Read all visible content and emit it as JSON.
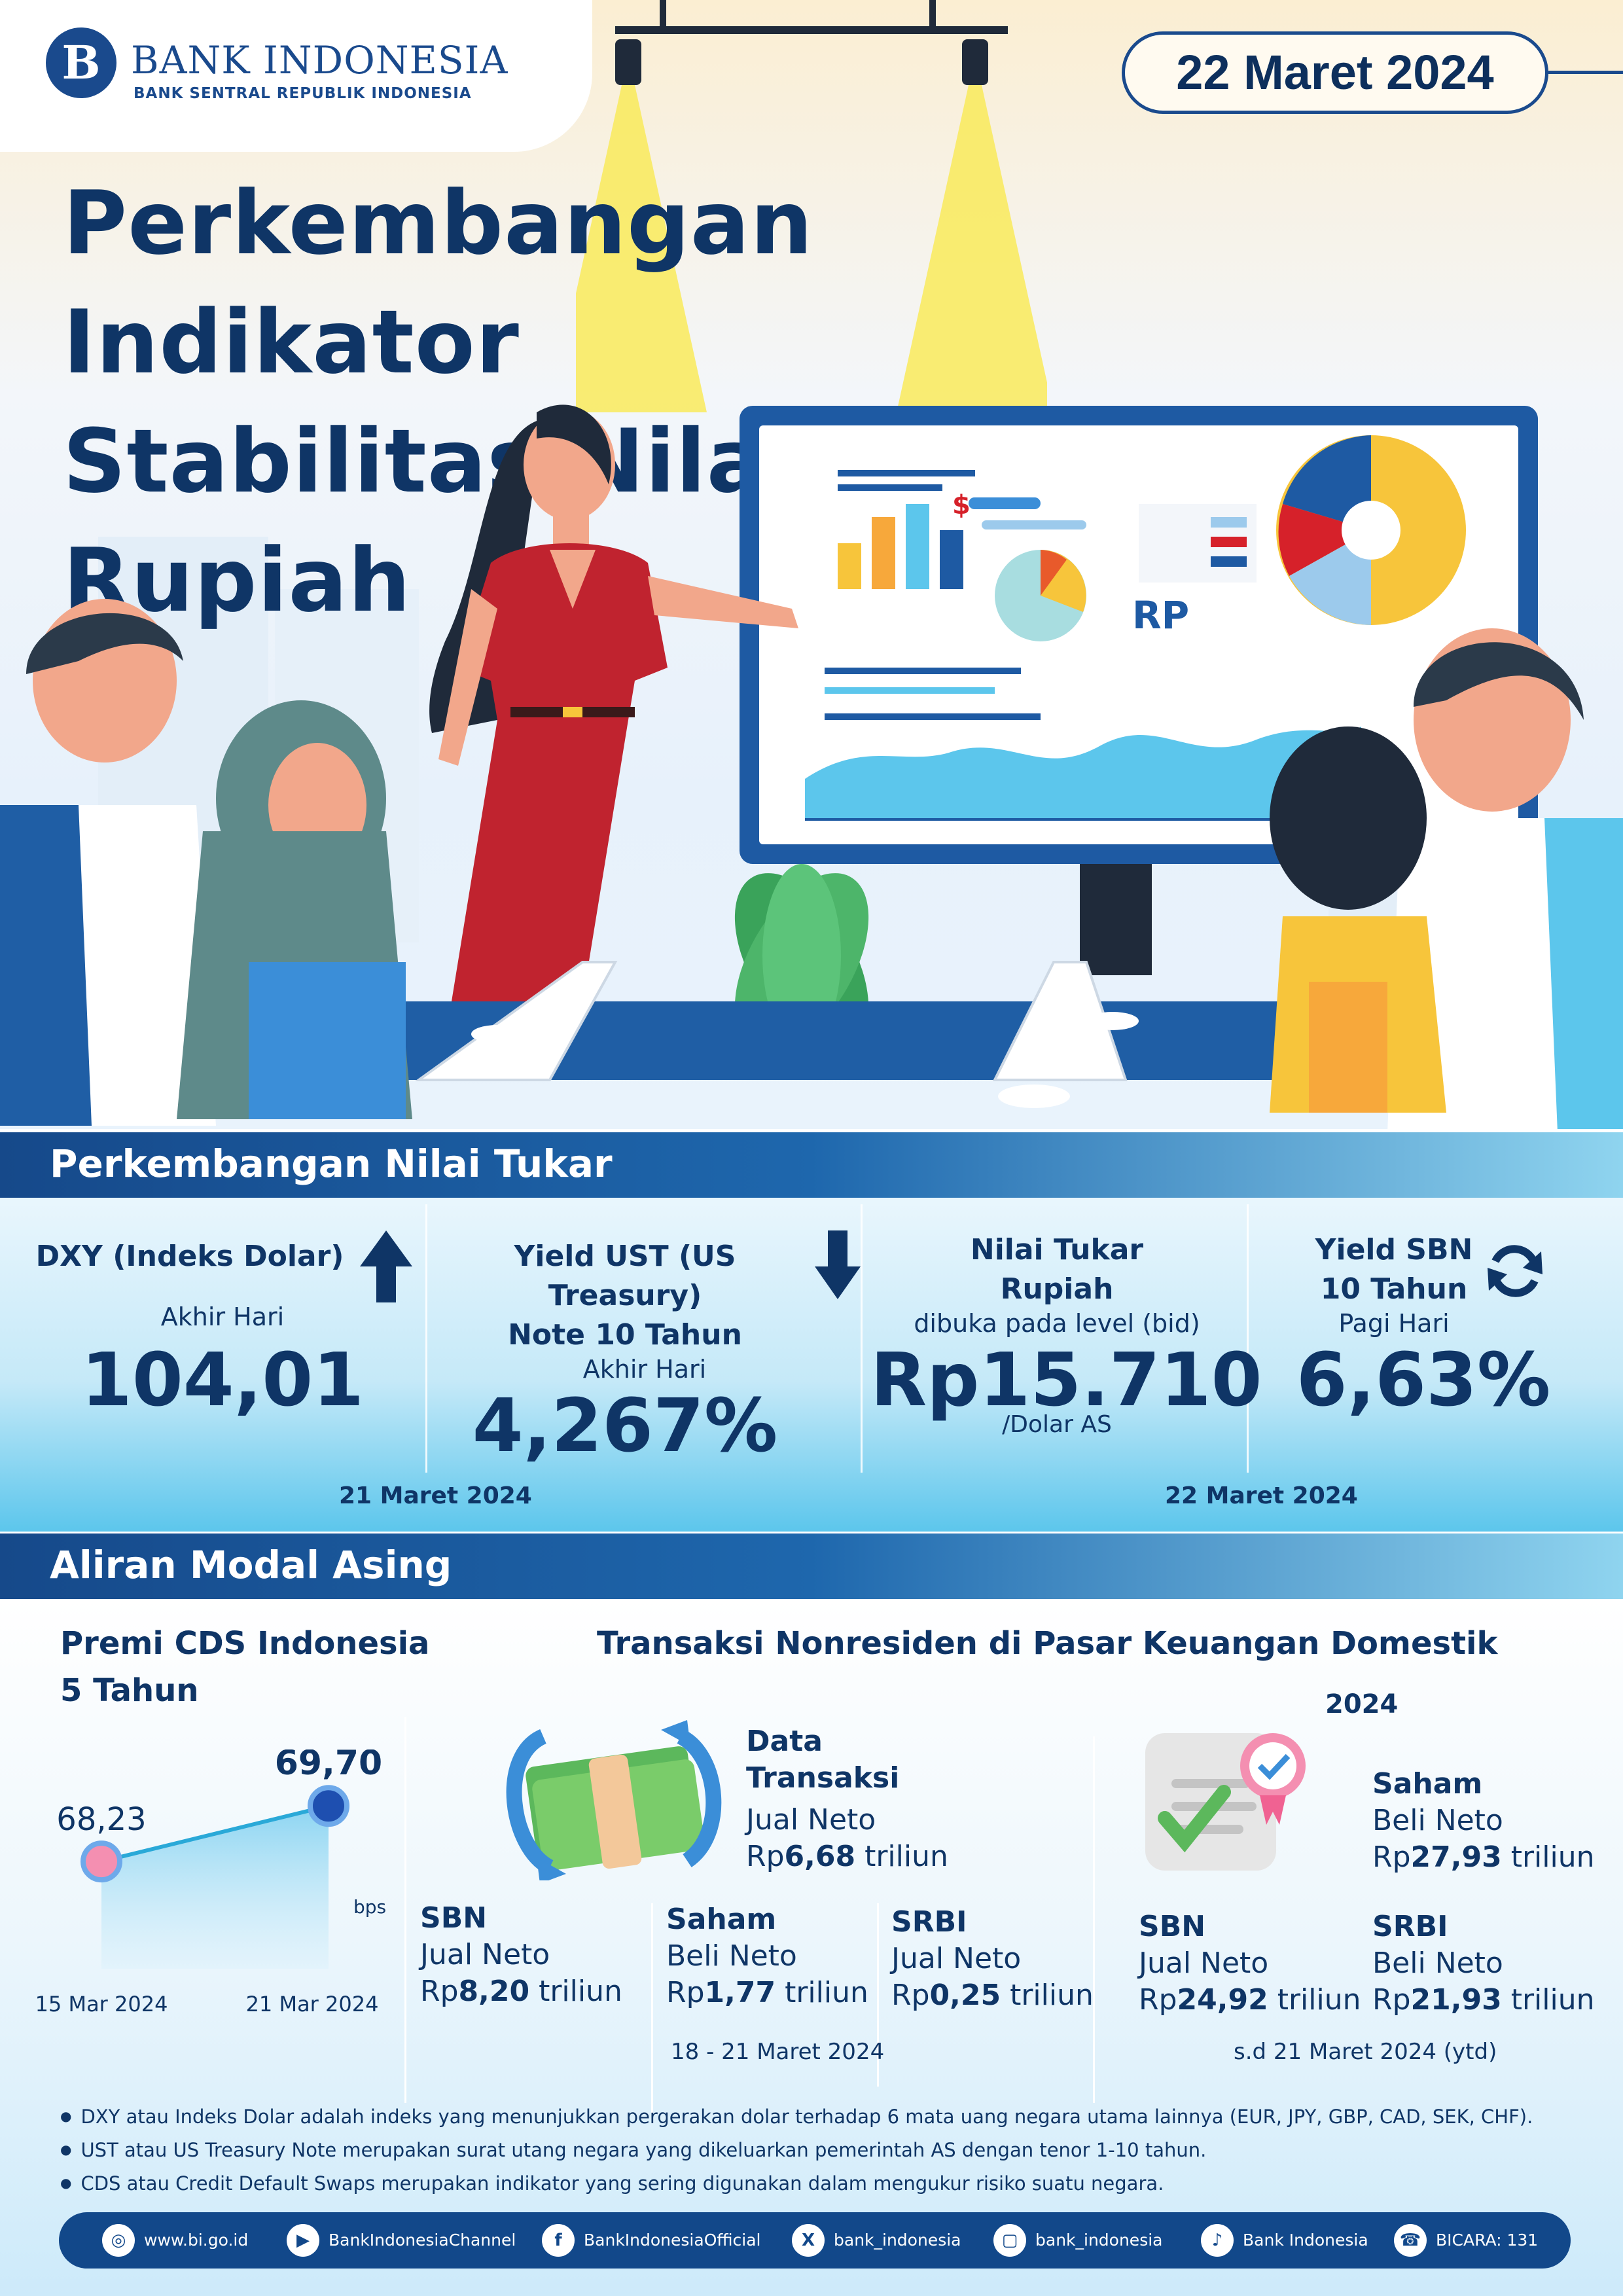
{
  "header": {
    "logo_letter": "B",
    "bank_name": "BANK INDONESIA",
    "bank_sub": "BANK SENTRAL REPUBLIK INDONESIA",
    "date": "22 Maret 2024",
    "title_line1": "Perkembangan Indikator",
    "title_line2": "Stabilitas Nilai Rupiah",
    "screen_rp": "RP",
    "screen_dollar": "$"
  },
  "nilai_tukar": {
    "section_title": "Perkembangan Nilai Tukar",
    "dxy": {
      "label": "DXY (Indeks Dolar)",
      "sub": "Akhir Hari",
      "value": "104,01",
      "trend_icon": "arrow-up"
    },
    "ust": {
      "label_line1": "Yield UST (US Treasury)",
      "label_line2": "Note  10 Tahun",
      "sub": "Akhir Hari",
      "value": "4,267%",
      "trend_icon": "arrow-down"
    },
    "rupiah": {
      "label_line1": "Nilai Tukar",
      "label_line2": "Rupiah",
      "sub": "dibuka pada level (bid)",
      "value": "Rp15.710",
      "unit": "/Dolar AS"
    },
    "sbn": {
      "label_line1": "Yield SBN",
      "label_line2": "10 Tahun",
      "sub": "Pagi Hari",
      "value": "6,63%",
      "trend_icon": "refresh"
    },
    "date_left": "21 Maret 2024",
    "date_right": "22 Maret 2024"
  },
  "modal_asing": {
    "section_title": "Aliran Modal Asing",
    "cds_title_line1": "Premi CDS Indonesia",
    "cds_title_line2": "5 Tahun",
    "cds_unit": "bps",
    "transaksi_title": "Transaksi Nonresiden di Pasar Keuangan Domestik",
    "data_transaksi": {
      "title_line1": "Data",
      "title_line2": "Transaksi",
      "status": "Jual Neto",
      "prefix": "Rp",
      "amount": "6,68",
      "suffix": " triliun"
    },
    "weekly": [
      {
        "name": "SBN",
        "status": "Jual Neto",
        "prefix": "Rp",
        "amount": "8,20",
        "suffix": " triliun"
      },
      {
        "name": "Saham",
        "status": "Beli Neto",
        "prefix": "Rp",
        "amount": "1,77",
        "suffix": " triliun"
      },
      {
        "name": "SRBI",
        "status": "Jual Neto",
        "prefix": "Rp",
        "amount": "0,25",
        "suffix": " triliun"
      }
    ],
    "weekly_period": "18 - 21 Maret 2024",
    "ytd_year": "2024",
    "ytd": [
      {
        "name": "Saham",
        "status": "Beli Neto",
        "prefix": "Rp",
        "amount": "27,93",
        "suffix": " triliun"
      },
      {
        "name": "SBN",
        "status": "Jual Neto",
        "prefix": "Rp",
        "amount": "24,92",
        "suffix": " triliun"
      },
      {
        "name": "SRBI",
        "status": "Beli Neto",
        "prefix": "Rp",
        "amount": "21,93",
        "suffix": " triliun"
      }
    ],
    "ytd_period": "s.d 21 Maret 2024 (ytd)"
  },
  "chart_data": {
    "type": "line",
    "title": "Premi CDS Indonesia 5 Tahun",
    "x": [
      "15 Mar 2024",
      "21 Mar 2024"
    ],
    "series": [
      {
        "values": [
          68.23,
          69.7
        ]
      }
    ],
    "labels": [
      "68,23",
      "69,70"
    ],
    "ylabel": "bps",
    "grid": false
  },
  "notes": [
    "DXY atau Indeks Dolar adalah indeks yang menunjukkan pergerakan dolar terhadap 6 mata uang negara utama lainnya (EUR, JPY, GBP, CAD, SEK, CHF).",
    "UST atau US Treasury Note merupakan surat utang negara yang dikeluarkan  pemerintah AS dengan tenor 1-10 tahun.",
    "CDS atau Credit Default Swaps merupakan indikator  yang sering digunakan dalam mengukur risiko suatu negara."
  ],
  "footer": [
    {
      "icon": "globe-icon",
      "glyph": "◎",
      "label": "www.bi.go.id"
    },
    {
      "icon": "youtube-icon",
      "glyph": "▶",
      "label": "BankIndonesiaChannel"
    },
    {
      "icon": "facebook-icon",
      "glyph": "f",
      "label": "BankIndonesiaOfficial"
    },
    {
      "icon": "x-icon",
      "glyph": "X",
      "label": "bank_indonesia"
    },
    {
      "icon": "instagram-icon",
      "glyph": "▢",
      "label": "bank_indonesia"
    },
    {
      "icon": "tiktok-icon",
      "glyph": "♪",
      "label": "Bank Indonesia"
    },
    {
      "icon": "bicara-icon",
      "glyph": "☎",
      "label": "BICARA: 131"
    }
  ],
  "colors": {
    "primary": "#0f3566",
    "brand_blue": "#1a4a8d",
    "accent_cyan": "#5cc6ec",
    "dress_red": "#c0232f"
  }
}
